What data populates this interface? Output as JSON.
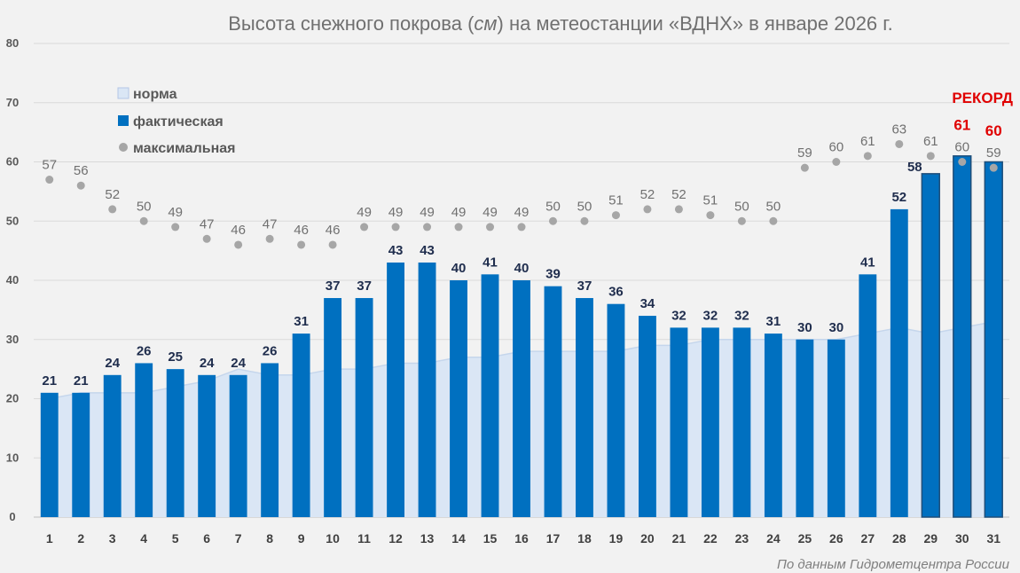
{
  "chart_data": {
    "type": "bar",
    "title_prefix": "Высота снежного покрова (",
    "title_unit": "см",
    "title_suffix": ") на метеостанции «ВДНХ» в январе 2026 г.",
    "categories": [
      "1",
      "2",
      "3",
      "4",
      "5",
      "6",
      "7",
      "8",
      "9",
      "10",
      "11",
      "12",
      "13",
      "14",
      "15",
      "16",
      "17",
      "18",
      "19",
      "20",
      "21",
      "22",
      "23",
      "24",
      "25",
      "26",
      "27",
      "28",
      "29",
      "30",
      "31"
    ],
    "ylim": [
      0,
      80
    ],
    "yticks": [
      0,
      10,
      20,
      30,
      40,
      50,
      60,
      70,
      80
    ],
    "grid": true,
    "legend_position": "top-left",
    "series": [
      {
        "name": "норма",
        "kind": "area",
        "color": "#dae6f5",
        "values": [
          20,
          21,
          21,
          21,
          22,
          23,
          25,
          24,
          24,
          25,
          25,
          26,
          26,
          27,
          27,
          28,
          28,
          28,
          28,
          29,
          29,
          30,
          30,
          30,
          30,
          30,
          31,
          32,
          31,
          32,
          33
        ]
      },
      {
        "name": "фактическая",
        "kind": "bar",
        "color": "#0070c0",
        "values": [
          21,
          21,
          24,
          26,
          25,
          24,
          24,
          26,
          31,
          37,
          37,
          43,
          43,
          40,
          41,
          40,
          39,
          37,
          36,
          34,
          32,
          32,
          32,
          31,
          30,
          30,
          41,
          52,
          58,
          61,
          60
        ]
      },
      {
        "name": "максимальная",
        "kind": "scatter",
        "color": "#a6a6a6",
        "values": [
          57,
          56,
          52,
          50,
          49,
          47,
          46,
          47,
          46,
          46,
          49,
          49,
          49,
          49,
          49,
          49,
          50,
          50,
          51,
          52,
          52,
          51,
          50,
          50,
          59,
          60,
          61,
          63,
          61,
          60,
          59
        ]
      }
    ],
    "record_days": [
      "30",
      "31"
    ],
    "record_color": "#e00000",
    "annotation": "РЕКОРД",
    "source": "По данным Гидрометцентра России"
  }
}
